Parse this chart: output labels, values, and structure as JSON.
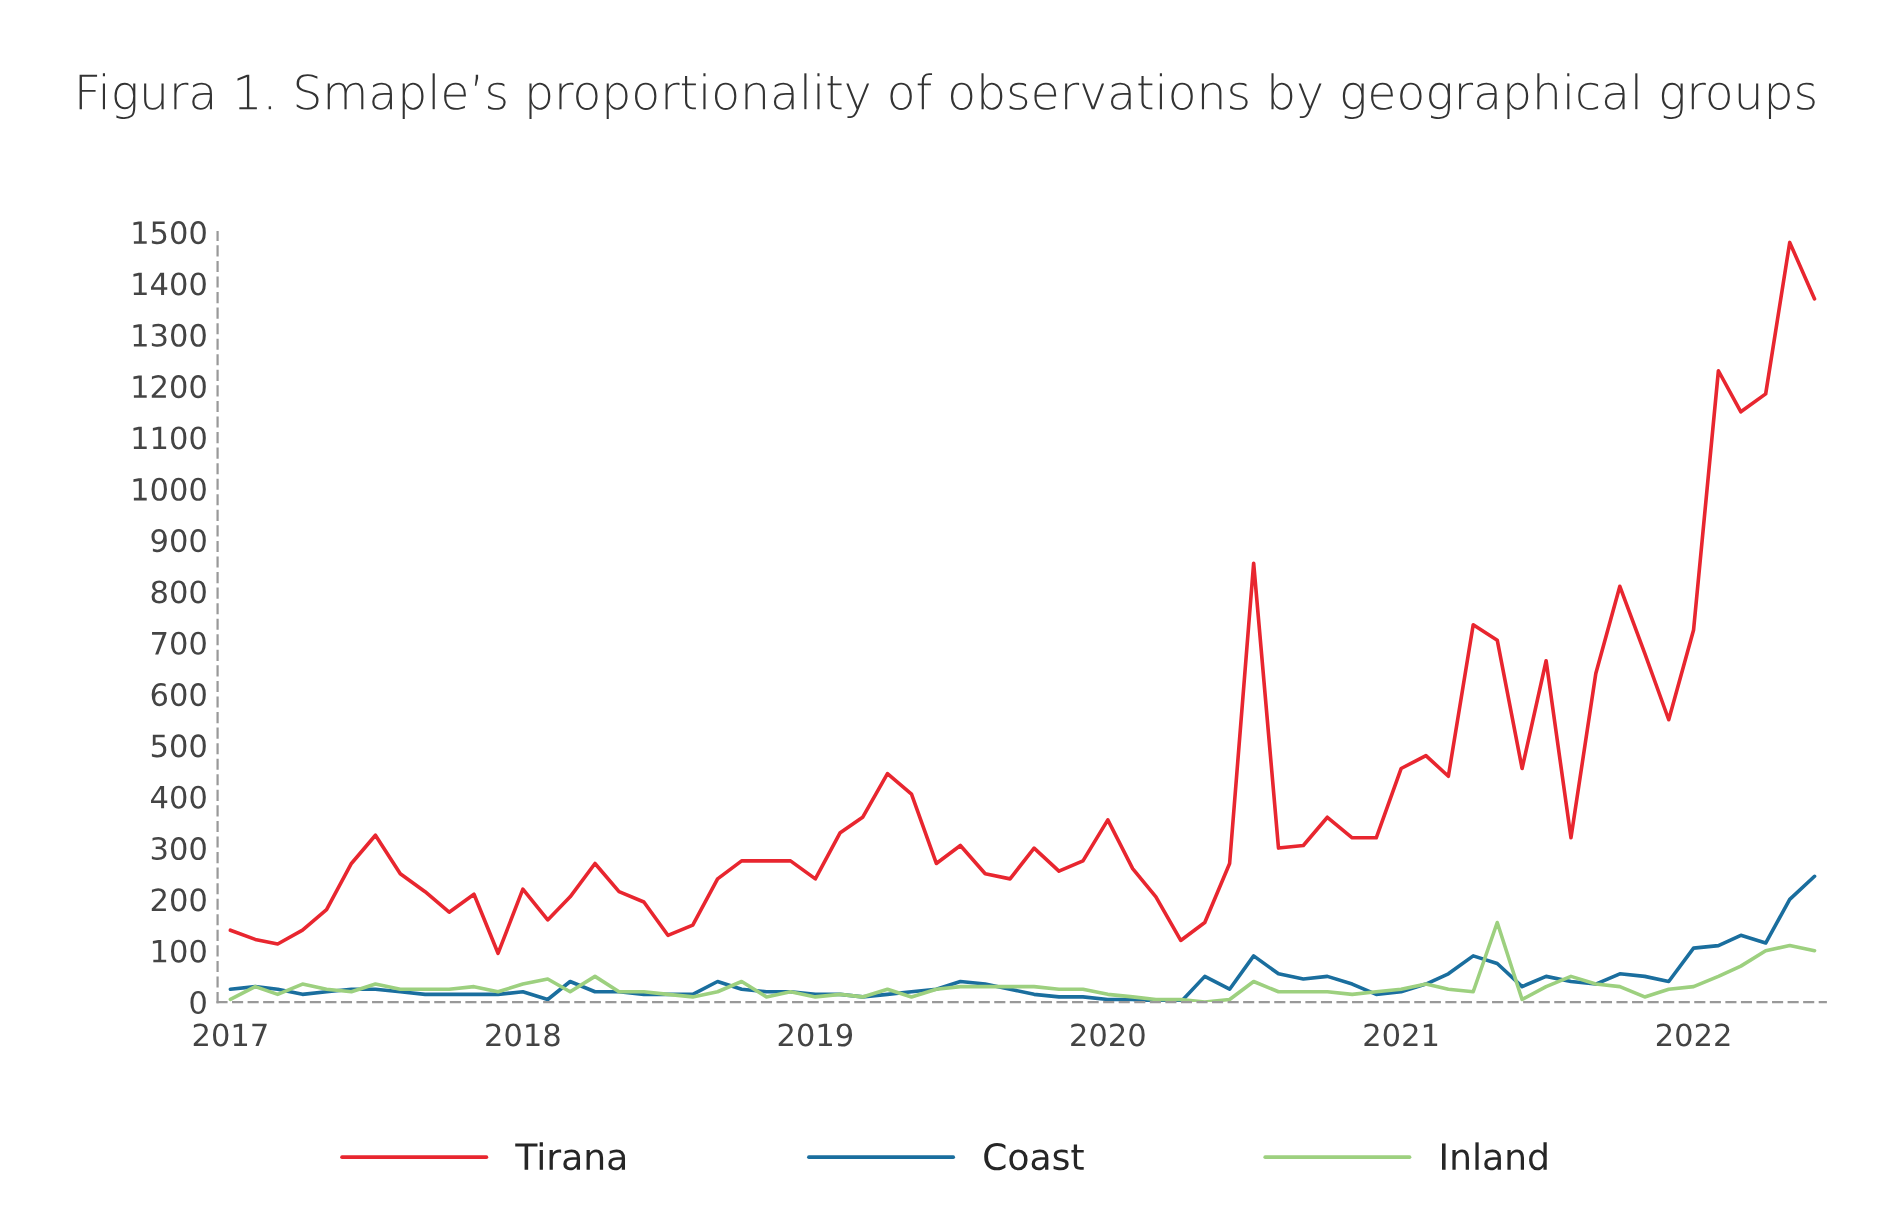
{
  "chart_data": {
    "type": "line",
    "title": "Figura 1. Smaple’s proportionality of observations by geographical groups",
    "x": [
      "2017-01",
      "2017-02",
      "2017-03",
      "2017-04",
      "2017-05",
      "2017-06",
      "2017-07",
      "2017-08",
      "2017-09",
      "2017-10",
      "2017-11",
      "2017-12",
      "2018-01",
      "2018-02",
      "2018-03",
      "2018-04",
      "2018-05",
      "2018-06",
      "2018-07",
      "2018-08",
      "2018-09",
      "2018-10",
      "2018-11",
      "2018-12",
      "2019-01",
      "2019-02",
      "2019-03",
      "2019-04",
      "2019-05",
      "2019-06",
      "2019-07",
      "2019-08",
      "2019-09",
      "2019-10",
      "2019-11",
      "2019-12",
      "2020-01",
      "2020-02",
      "2020-03",
      "2020-04",
      "2020-05",
      "2020-06",
      "2020-07",
      "2020-08",
      "2020-09",
      "2020-10",
      "2020-11",
      "2020-12",
      "2021-01",
      "2021-02",
      "2021-03",
      "2021-04",
      "2021-05",
      "2021-06",
      "2021-07",
      "2021-08",
      "2021-09",
      "2021-10",
      "2021-11",
      "2021-12",
      "2022-01",
      "2022-02",
      "2022-03",
      "2022-04",
      "2022-05",
      "2022-06"
    ],
    "series": [
      {
        "name": "Tirana",
        "color": "#e8262f",
        "values": [
          140,
          122,
          113,
          140,
          180,
          270,
          325,
          250,
          215,
          175,
          210,
          95,
          220,
          160,
          205,
          270,
          215,
          195,
          130,
          150,
          240,
          275,
          275,
          275,
          240,
          330,
          360,
          445,
          405,
          270,
          305,
          250,
          240,
          300,
          255,
          275,
          355,
          260,
          205,
          120,
          155,
          270,
          855,
          300,
          305,
          360,
          320,
          320,
          455,
          480,
          440,
          735,
          705,
          455,
          665,
          320,
          640,
          810,
          680,
          550,
          725,
          1230,
          1150,
          1185,
          1480,
          1370
        ]
      },
      {
        "name": "Coast",
        "color": "#1a6e9e",
        "values": [
          25,
          30,
          25,
          15,
          20,
          25,
          25,
          20,
          15,
          15,
          15,
          15,
          20,
          5,
          40,
          20,
          20,
          15,
          15,
          15,
          40,
          25,
          20,
          20,
          15,
          15,
          10,
          15,
          20,
          25,
          40,
          35,
          25,
          15,
          10,
          10,
          5,
          5,
          0,
          0,
          50,
          25,
          90,
          55,
          45,
          50,
          35,
          15,
          20,
          35,
          55,
          90,
          75,
          30,
          50,
          40,
          35,
          55,
          50,
          40,
          105,
          110,
          130,
          115,
          200,
          245
        ]
      },
      {
        "name": "Inland",
        "color": "#9dd07f",
        "values": [
          5,
          30,
          15,
          35,
          25,
          20,
          35,
          25,
          25,
          25,
          30,
          20,
          35,
          45,
          20,
          50,
          20,
          20,
          15,
          10,
          20,
          40,
          10,
          20,
          10,
          15,
          10,
          25,
          10,
          25,
          30,
          30,
          30,
          30,
          25,
          25,
          15,
          10,
          5,
          5,
          0,
          5,
          40,
          20,
          20,
          20,
          15,
          20,
          25,
          35,
          25,
          20,
          155,
          5,
          30,
          50,
          35,
          30,
          10,
          25,
          30,
          50,
          70,
          100,
          110,
          100
        ]
      }
    ],
    "xlim": [
      "2016-12-16",
      "2022-06-15"
    ],
    "xticks": [
      {
        "value": "2017-01-01",
        "label": "2017"
      },
      {
        "value": "2018-01-01",
        "label": "2018"
      },
      {
        "value": "2019-01-01",
        "label": "2019"
      },
      {
        "value": "2020-01-01",
        "label": "2020"
      },
      {
        "value": "2021-01-01",
        "label": "2021"
      },
      {
        "value": "2022-01-01",
        "label": "2022"
      }
    ],
    "ylim": [
      0,
      1500
    ],
    "yticks": [
      0,
      100,
      200,
      300,
      400,
      500,
      600,
      700,
      800,
      900,
      1000,
      1100,
      1200,
      1300,
      1400,
      1500
    ],
    "grid": false,
    "legend": "bottom",
    "marker": "none",
    "line_style": "solid"
  }
}
